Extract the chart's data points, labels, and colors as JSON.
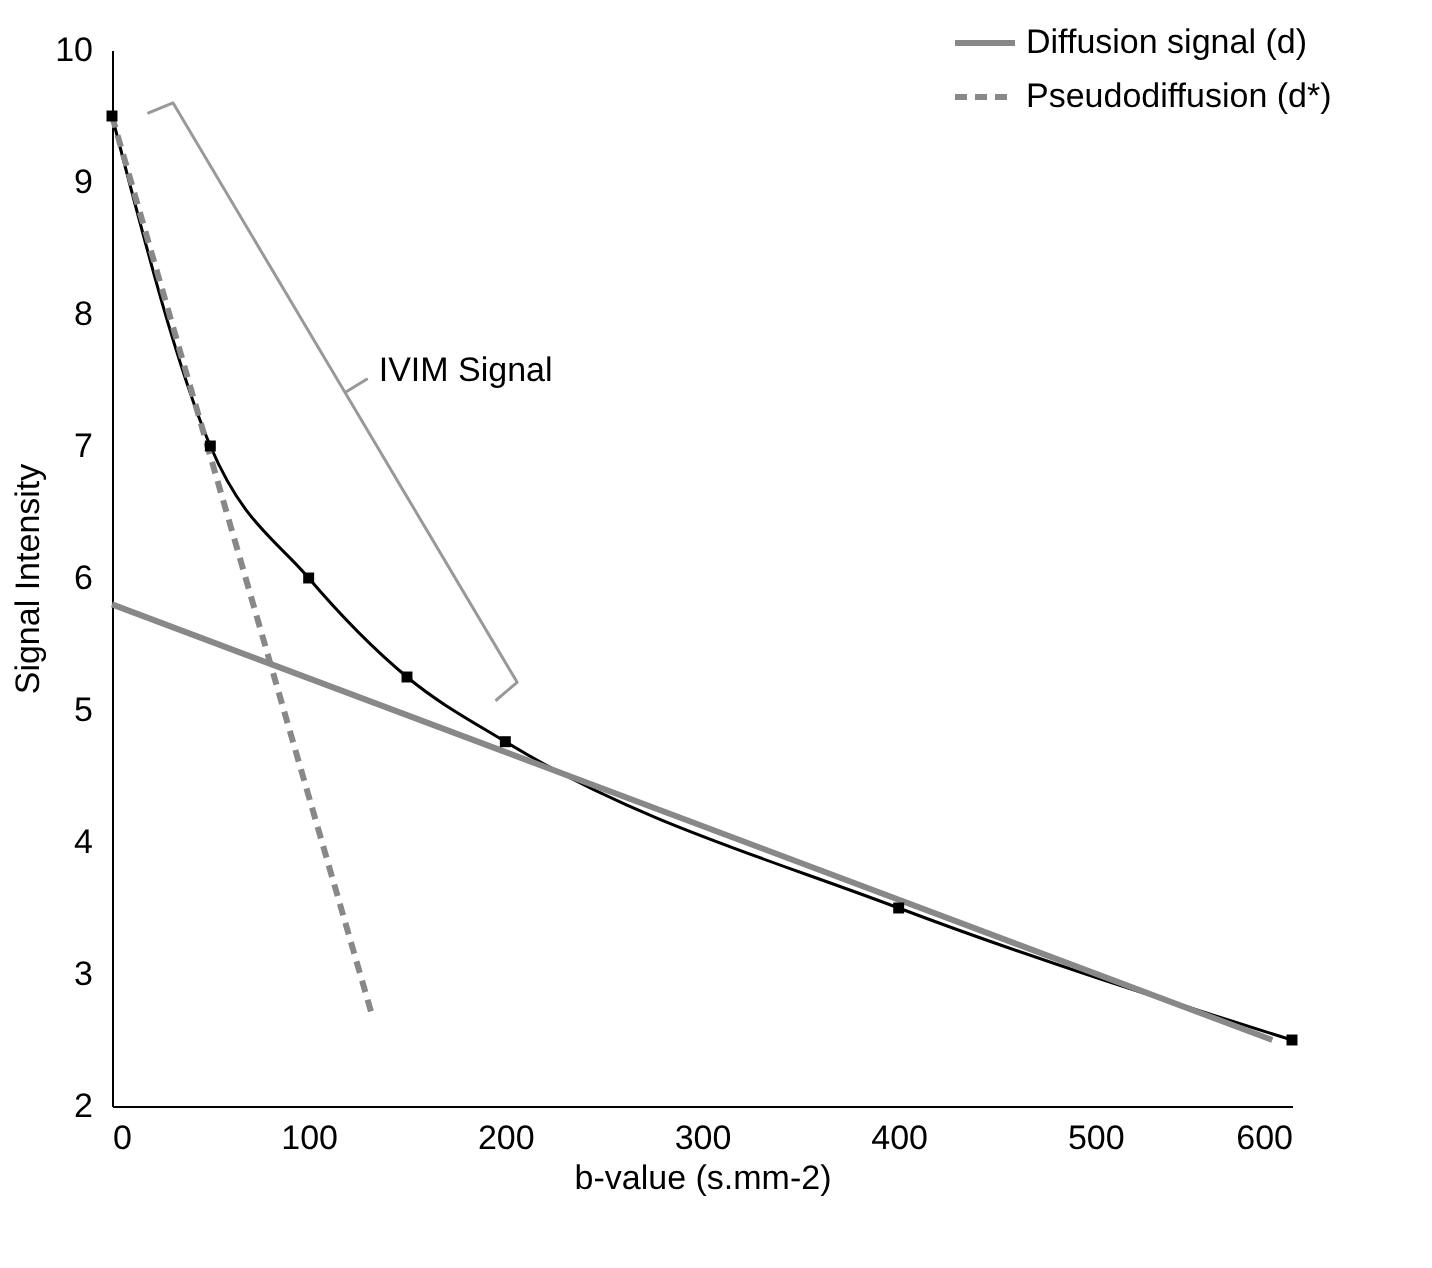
{
  "chart_data": {
    "type": "line",
    "xlabel": "b-value (s.mm-2)",
    "ylabel": "Signal Intensity",
    "xlim": [
      0,
      600
    ],
    "xticks": [
      0,
      100,
      200,
      300,
      400,
      500,
      600
    ],
    "ylim": [
      2,
      10
    ],
    "yticks": [
      2,
      3,
      4,
      5,
      6,
      7,
      8,
      9,
      10
    ],
    "grid": false,
    "legend": "top right",
    "series": [
      {
        "color": "#000000",
        "marker": "square",
        "line_style": "solid",
        "x": [
          0,
          50,
          100,
          150,
          200,
          400,
          600
        ],
        "values": [
          9.5,
          7.0,
          6.0,
          5.25,
          4.76,
          3.5,
          2.5
        ]
      },
      {
        "name": "Diffusion signal (d)",
        "color": "#888888",
        "marker": "none",
        "line_style": "solid",
        "x": [
          0,
          590
        ],
        "values": [
          5.8,
          2.5
        ]
      },
      {
        "name": "Pseudodiffusion (d*)",
        "color": "#888888",
        "marker": "none",
        "line_style": "dashed",
        "x": [
          0,
          132
        ],
        "values": [
          9.5,
          2.7
        ]
      }
    ],
    "annotations": [
      "IVIM Signal"
    ]
  }
}
